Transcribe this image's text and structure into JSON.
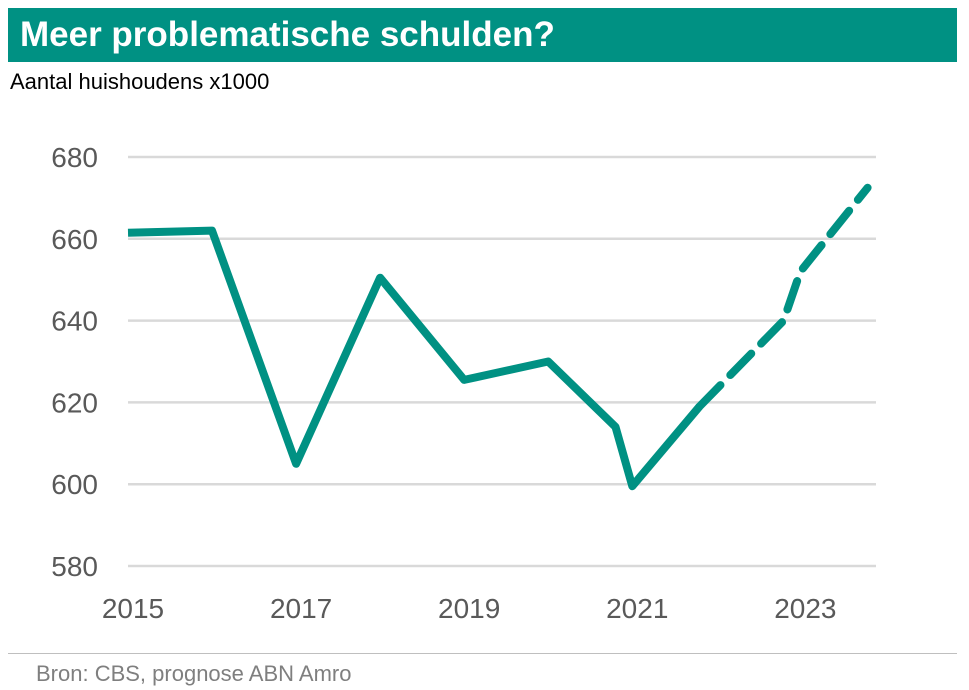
{
  "header": {
    "title": "Meer problematische schulden?",
    "subtitle": "Aantal huishoudens x1000"
  },
  "footer": {
    "source": "Bron: CBS, prognose ABN Amro"
  },
  "colors": {
    "brand": "#009183",
    "gridline": "#d9d9d9",
    "tick_text": "#595959"
  },
  "chart_data": {
    "type": "line",
    "title": "Meer problematische schulden?",
    "ylabel": "Aantal huishoudens x1000",
    "x_ticks": [
      "2015",
      "2017",
      "2019",
      "2021",
      "2023"
    ],
    "y_ticks": [
      "580",
      "600",
      "620",
      "640",
      "660",
      "680"
    ],
    "ylim": [
      580,
      680
    ],
    "xlim": [
      2015,
      2023.9
    ],
    "grid": true,
    "series": [
      {
        "style": "solid",
        "points": [
          {
            "x": 2015.0,
            "y": 661.5
          },
          {
            "x": 2016.0,
            "y": 662
          },
          {
            "x": 2017.0,
            "y": 605
          },
          {
            "x": 2018.0,
            "y": 650.5
          },
          {
            "x": 2019.0,
            "y": 625.5
          },
          {
            "x": 2020.0,
            "y": 630
          },
          {
            "x": 2020.8,
            "y": 614
          },
          {
            "x": 2021.0,
            "y": 599.5
          },
          {
            "x": 2021.8,
            "y": 619
          }
        ]
      },
      {
        "style": "dashed",
        "points": [
          {
            "x": 2021.8,
            "y": 619
          },
          {
            "x": 2022.8,
            "y": 640
          },
          {
            "x": 2023.0,
            "y": 652
          },
          {
            "x": 2023.8,
            "y": 672.5
          }
        ]
      }
    ]
  }
}
